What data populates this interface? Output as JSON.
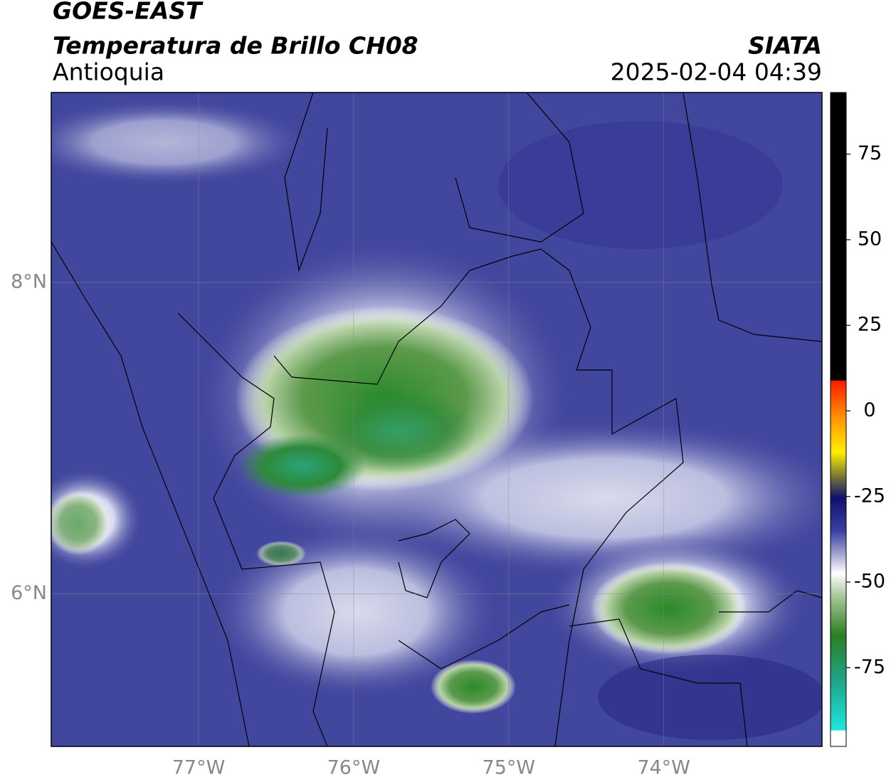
{
  "header": {
    "title": "GOES-EAST",
    "subtitle": "Temperatura de Brillo CH08",
    "region": "Antioquia",
    "source": "SIATA",
    "datetime": "2025-02-04 04:39"
  },
  "map": {
    "lonlim": [
      -77.95,
      -72.98
    ],
    "latlim": [
      5.02,
      9.22
    ],
    "lonticks": [
      {
        "value": -77,
        "label": "77°W"
      },
      {
        "value": -76,
        "label": "76°W"
      },
      {
        "value": -75,
        "label": "75°W"
      },
      {
        "value": -74,
        "label": "74°W"
      }
    ],
    "latticks": [
      {
        "value": 8,
        "label": "8°N"
      },
      {
        "value": 6,
        "label": "6°N"
      }
    ],
    "grid": true
  },
  "colorbar": {
    "ylim": [
      -98,
      93
    ],
    "yticks": [
      75,
      50,
      25,
      0,
      -25,
      -50,
      -75
    ]
  }
}
